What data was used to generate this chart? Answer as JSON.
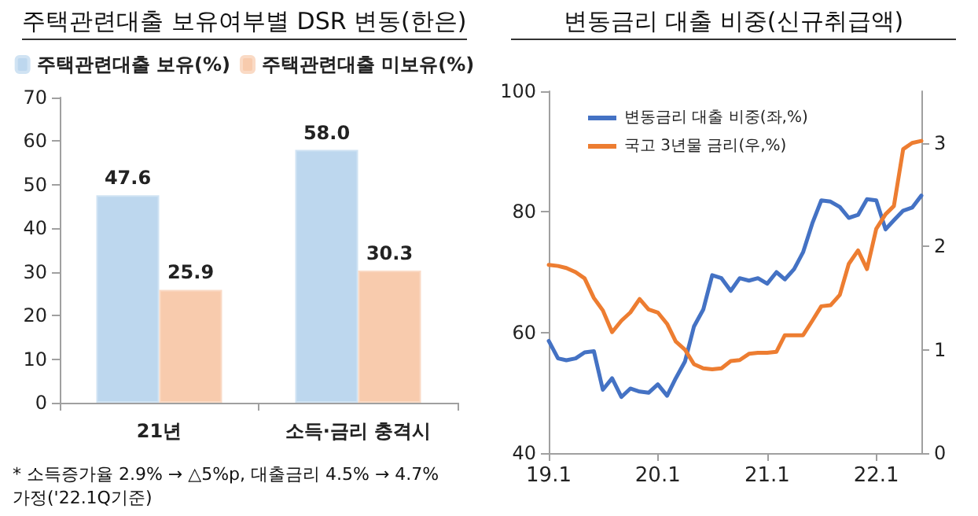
{
  "chart_data": [
    {
      "type": "bar",
      "title": "주택관련대출 보유여부별 DSR 변동(한은)",
      "categories": [
        "21년",
        "소득·금리 충격시"
      ],
      "series": [
        {
          "name": "주택관련대출 보유(%)",
          "color": "#bdd7ee",
          "values": [
            47.6,
            58.0
          ],
          "value_labels": [
            "47.6",
            "58.0"
          ]
        },
        {
          "name": "주택관련대출 미보유(%)",
          "color": "#f8cbad",
          "values": [
            25.9,
            30.3
          ],
          "value_labels": [
            "25.9",
            "30.3"
          ]
        }
      ],
      "ylim": [
        0,
        70
      ],
      "yticks": [
        0,
        10,
        20,
        30,
        40,
        50,
        60,
        70
      ],
      "legend": "top",
      "grid": false,
      "annotations": [
        "* 소득증가율 2.9% → △5%p, 대출금리 4.5% → 4.7% 가정('22.1Q기준)"
      ]
    },
    {
      "type": "line",
      "title": "변동금리 대출 비중(신규취급액)",
      "x": [
        "2019-01",
        "2019-02",
        "2019-03",
        "2019-04",
        "2019-05",
        "2019-06",
        "2019-07",
        "2019-08",
        "2019-09",
        "2019-10",
        "2019-11",
        "2019-12",
        "2020-01",
        "2020-02",
        "2020-03",
        "2020-04",
        "2020-05",
        "2020-06",
        "2020-07",
        "2020-08",
        "2020-09",
        "2020-10",
        "2020-11",
        "2020-12",
        "2021-01",
        "2021-02",
        "2021-03",
        "2021-04",
        "2021-05",
        "2021-06",
        "2021-07",
        "2021-08",
        "2021-09",
        "2021-10",
        "2021-11",
        "2021-12",
        "2022-01",
        "2022-02",
        "2022-03",
        "2022-04",
        "2022-05",
        "2022-06"
      ],
      "series": [
        {
          "name": "변동금리 대출 비중(좌,%)",
          "color": "#4472c4",
          "values": [
            58.6,
            55.7,
            55.4,
            55.7,
            56.7,
            56.9,
            50.5,
            52.4,
            49.3,
            50.7,
            50.2,
            50.0,
            51.4,
            49.5,
            52.4,
            55.2,
            61.0,
            63.8,
            69.5,
            69.0,
            66.9,
            69.0,
            68.6,
            69.0,
            68.1,
            70.0,
            68.8,
            70.5,
            73.3,
            78.1,
            81.9,
            81.7,
            80.8,
            79.0,
            79.5,
            82.1,
            81.9,
            77.1,
            78.6,
            80.2,
            80.7,
            82.7
          ]
        },
        {
          "name": "국고 3년물 금리(우,%)",
          "color": "#ed7d31",
          "axis": "y2",
          "values": [
            1.82,
            1.81,
            1.79,
            1.75,
            1.69,
            1.5,
            1.38,
            1.17,
            1.28,
            1.36,
            1.49,
            1.39,
            1.36,
            1.25,
            1.08,
            1.0,
            0.86,
            0.82,
            0.81,
            0.82,
            0.89,
            0.9,
            0.96,
            0.97,
            0.97,
            0.98,
            1.14,
            1.14,
            1.14,
            1.28,
            1.42,
            1.43,
            1.53,
            1.83,
            1.96,
            1.78,
            2.17,
            2.31,
            2.39,
            2.94,
            3.0,
            3.02
          ]
        }
      ],
      "xlim": [
        "2019-01",
        "2022-06"
      ],
      "xticks": [
        {
          "value": "2019-01",
          "label": "19.1"
        },
        {
          "value": "2020-01",
          "label": "20.1"
        },
        {
          "value": "2021-01",
          "label": "21.1"
        },
        {
          "value": "2022-01",
          "label": "22.1"
        }
      ],
      "ylim": [
        40,
        100
      ],
      "yticks": [
        40,
        60,
        80,
        100
      ],
      "y2lim": [
        0,
        3.5
      ],
      "y2ticks": [
        0,
        1,
        2,
        3
      ],
      "legend": "top left",
      "grid": false,
      "marker": "none",
      "line_style": "solid"
    }
  ]
}
